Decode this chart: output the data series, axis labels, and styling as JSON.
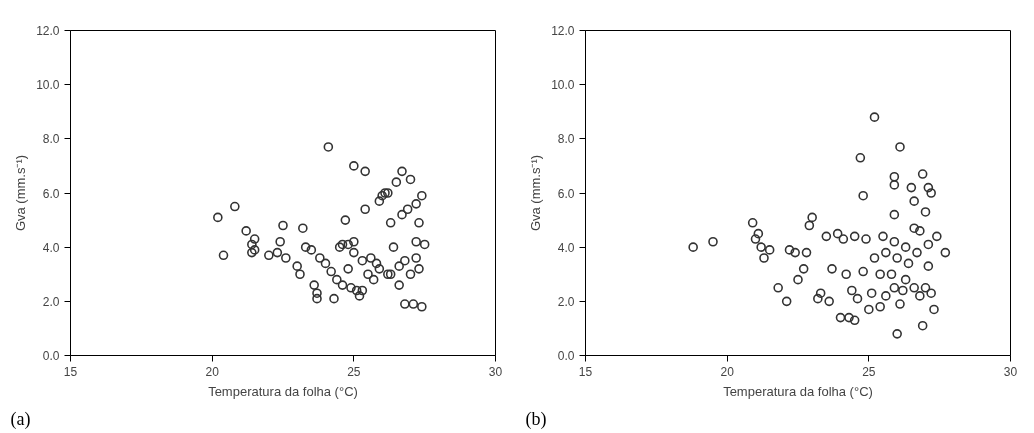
{
  "chart_data": [
    {
      "type": "scatter",
      "xlabel": "Temperatura da folha (°C)",
      "ylabel": "Gva (mm.s⁻¹)",
      "annotations": [
        "(a)"
      ],
      "xlim": [
        15,
        30
      ],
      "ylim": [
        0,
        12
      ],
      "xticks": [
        15,
        20,
        25,
        30
      ],
      "yticks": [
        {
          "value": 0,
          "label": "0.0"
        },
        {
          "value": 2,
          "label": "2.0"
        },
        {
          "value": 4,
          "label": "4.0"
        },
        {
          "value": 6,
          "label": "6.0"
        },
        {
          "value": 8,
          "label": "8.0"
        },
        {
          "value": 10,
          "label": "10.0"
        },
        {
          "value": 12,
          "label": "12.0"
        }
      ],
      "grid": false,
      "marker": "circle",
      "series": [
        {
          "color": "#333333",
          "x": [
            20.2,
            20.4,
            20.8,
            21.2,
            21.4,
            21.4,
            21.5,
            21.5,
            22.0,
            22.3,
            22.5,
            22.4,
            22.6,
            23.0,
            23.1,
            23.2,
            23.3,
            23.5,
            23.6,
            23.7,
            23.7,
            23.8,
            24.0,
            24.1,
            24.2,
            24.3,
            24.4,
            24.5,
            24.6,
            24.7,
            24.8,
            24.8,
            24.9,
            25.0,
            25.0,
            25.1,
            25.2,
            25.3,
            25.4,
            25.4,
            25.3,
            25.5,
            25.6,
            25.7,
            25.8,
            25.9,
            25.9,
            26.0,
            26.1,
            26.2,
            26.3,
            26.3,
            26.4,
            26.5,
            26.6,
            26.7,
            26.7,
            26.8,
            26.8,
            26.9,
            27.0,
            27.0,
            27.1,
            27.2,
            27.2,
            27.2,
            27.3,
            27.3,
            27.4,
            27.4,
            27.5,
            26.2,
            25.0,
            24.6,
            26.6
          ],
          "values": [
            5.1,
            3.7,
            5.5,
            4.6,
            4.1,
            3.8,
            4.3,
            3.9,
            3.7,
            3.8,
            4.8,
            4.2,
            3.6,
            3.3,
            3.0,
            4.7,
            4.0,
            3.9,
            2.6,
            2.3,
            2.1,
            3.6,
            3.4,
            7.7,
            3.1,
            2.1,
            2.8,
            4.0,
            4.1,
            5.0,
            4.1,
            3.2,
            2.5,
            7.0,
            4.2,
            2.4,
            2.2,
            2.4,
            6.8,
            5.4,
            3.5,
            3.0,
            3.6,
            2.8,
            3.4,
            5.7,
            3.2,
            5.9,
            6.0,
            6.0,
            4.9,
            3.0,
            4.0,
            6.4,
            2.6,
            6.8,
            5.2,
            3.5,
            1.9,
            5.4,
            6.5,
            3.0,
            1.9,
            5.6,
            4.2,
            3.6,
            4.9,
            3.2,
            5.9,
            1.8,
            4.1,
            3.0,
            3.8,
            2.6,
            3.3
          ]
        }
      ]
    },
    {
      "type": "scatter",
      "xlabel": "Temperatura da folha (°C)",
      "ylabel": "Gva (mm.s⁻¹)",
      "annotations": [
        "(b)"
      ],
      "xlim": [
        15,
        30
      ],
      "ylim": [
        0,
        12
      ],
      "xticks": [
        15,
        20,
        25,
        30
      ],
      "yticks": [
        {
          "value": 0,
          "label": "0.0"
        },
        {
          "value": 2,
          "label": "2.0"
        },
        {
          "value": 4,
          "label": "4.0"
        },
        {
          "value": 6,
          "label": "6.0"
        },
        {
          "value": 8,
          "label": "8.0"
        },
        {
          "value": 10,
          "label": "10.0"
        },
        {
          "value": 12,
          "label": "12.0"
        }
      ],
      "grid": false,
      "marker": "circle",
      "series": [
        {
          "color": "#333333",
          "x": [
            18.8,
            19.5,
            20.9,
            21.0,
            21.1,
            21.2,
            21.3,
            21.5,
            21.8,
            22.1,
            22.2,
            22.4,
            22.5,
            22.7,
            22.8,
            22.9,
            23.0,
            23.2,
            23.3,
            23.5,
            23.6,
            23.7,
            23.9,
            24.0,
            24.1,
            24.2,
            24.3,
            24.4,
            24.5,
            24.5,
            24.7,
            24.8,
            24.8,
            24.9,
            25.0,
            25.1,
            25.2,
            25.2,
            25.4,
            25.5,
            25.6,
            25.6,
            25.8,
            25.9,
            25.9,
            25.9,
            25.9,
            25.9,
            26.0,
            26.0,
            26.1,
            26.1,
            26.2,
            26.3,
            26.4,
            26.5,
            26.6,
            26.6,
            26.6,
            26.7,
            26.8,
            26.8,
            26.9,
            26.9,
            27.0,
            27.0,
            27.1,
            27.1,
            27.1,
            27.2,
            27.2,
            27.3,
            27.4,
            27.7,
            26.3,
            25.4,
            24.6
          ],
          "values": [
            4.0,
            4.2,
            4.9,
            4.3,
            4.5,
            4.0,
            3.6,
            3.9,
            2.5,
            2.0,
            3.9,
            3.8,
            2.8,
            3.2,
            3.8,
            4.8,
            5.1,
            2.1,
            2.3,
            4.4,
            2.0,
            3.2,
            4.5,
            1.4,
            4.3,
            3.0,
            1.4,
            2.4,
            4.4,
            1.3,
            7.3,
            5.9,
            3.1,
            4.3,
            1.7,
            2.3,
            8.8,
            3.6,
            3.0,
            4.4,
            3.8,
            2.2,
            3.0,
            6.6,
            6.3,
            5.2,
            4.2,
            2.5,
            0.8,
            3.6,
            7.7,
            1.9,
            2.4,
            4.0,
            3.4,
            6.2,
            5.7,
            4.7,
            2.5,
            3.8,
            4.6,
            2.2,
            6.7,
            1.1,
            5.3,
            2.5,
            6.2,
            4.1,
            3.3,
            6.0,
            2.3,
            1.7,
            4.4,
            3.8,
            2.8,
            1.8,
            2.1
          ]
        }
      ]
    }
  ]
}
